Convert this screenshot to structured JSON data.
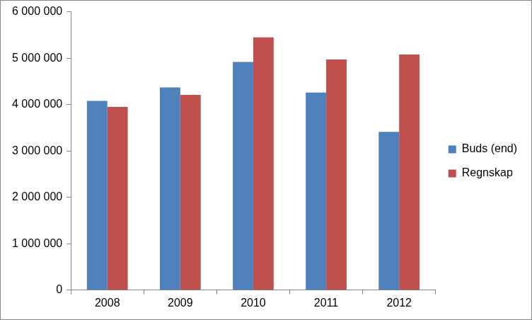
{
  "chart_data": {
    "type": "bar",
    "categories": [
      "2008",
      "2009",
      "2010",
      "2011",
      "2012"
    ],
    "series": [
      {
        "name": "Buds (end)",
        "color": "#4f81bd",
        "values": [
          4080000,
          4370000,
          4920000,
          4260000,
          3410000
        ]
      },
      {
        "name": "Regnskap",
        "color": "#c0504d",
        "values": [
          3950000,
          4210000,
          5450000,
          4970000,
          5080000
        ]
      }
    ],
    "ylim": [
      0,
      6000000
    ],
    "yticks": [
      0,
      {
        "value": 1000000,
        "label": "1 000 000"
      },
      {
        "value": 2000000,
        "label": "2 000 000"
      },
      {
        "value": 3000000,
        "label": "3 000 000"
      },
      {
        "value": 4000000,
        "label": "4 000 000"
      },
      {
        "value": 5000000,
        "label": "5 000 000"
      },
      {
        "value": 6000000,
        "label": "6 000 000"
      }
    ],
    "grid": false,
    "legend": "right"
  }
}
